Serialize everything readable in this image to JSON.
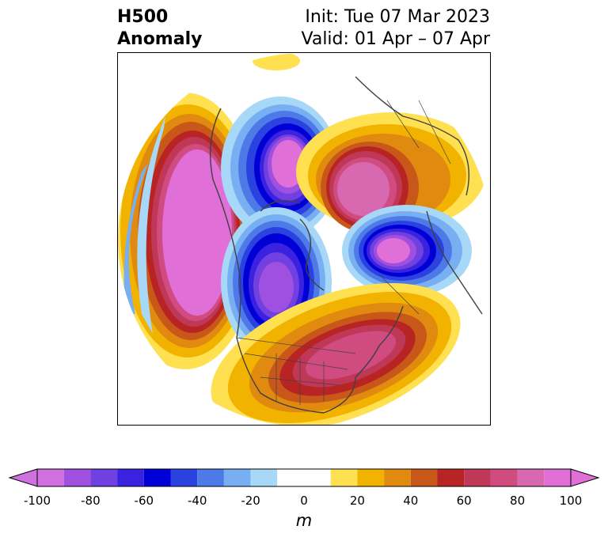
{
  "header": {
    "variable": "H500",
    "product": "Anomaly",
    "init": "Init: Tue 07 Mar 2023",
    "valid": "Valid: 01 Apr – 07 Apr"
  },
  "colorbar": {
    "unit": "m",
    "tick_labels": [
      "-100",
      "-80",
      "-60",
      "-40",
      "-20",
      "0",
      "20",
      "40",
      "60",
      "80",
      "100"
    ],
    "tick_values": [
      -100,
      -80,
      -60,
      -40,
      -20,
      0,
      20,
      40,
      60,
      80,
      100
    ],
    "range": [
      -100,
      100
    ],
    "extend": "both",
    "bins": [
      {
        "from": -100,
        "to": -90,
        "color": "#d070e0"
      },
      {
        "from": -90,
        "to": -80,
        "color": "#a050e0"
      },
      {
        "from": -80,
        "to": -70,
        "color": "#7040e0"
      },
      {
        "from": -70,
        "to": -60,
        "color": "#3a22e0"
      },
      {
        "from": -60,
        "to": -50,
        "color": "#0000d6"
      },
      {
        "from": -50,
        "to": -40,
        "color": "#2a42e0"
      },
      {
        "from": -40,
        "to": -30,
        "color": "#4e7ae8"
      },
      {
        "from": -30,
        "to": -20,
        "color": "#78aef2"
      },
      {
        "from": -20,
        "to": -10,
        "color": "#a8d8f8"
      },
      {
        "from": -10,
        "to": 10,
        "color": "#ffffff"
      },
      {
        "from": 10,
        "to": 20,
        "color": "#ffe050"
      },
      {
        "from": 20,
        "to": 30,
        "color": "#f2b200"
      },
      {
        "from": 30,
        "to": 40,
        "color": "#e08a10"
      },
      {
        "from": 40,
        "to": 50,
        "color": "#c8581a"
      },
      {
        "from": 50,
        "to": 60,
        "color": "#b82424"
      },
      {
        "from": 60,
        "to": 70,
        "color": "#c03858"
      },
      {
        "from": 70,
        "to": 80,
        "color": "#d04c80"
      },
      {
        "from": 80,
        "to": 90,
        "color": "#d868b0"
      },
      {
        "from": 90,
        "to": 100,
        "color": "#e070d8"
      }
    ],
    "under_color": "#d070e0",
    "over_color": "#e070d8"
  },
  "map": {
    "projection": "north-polar-stereographic",
    "features": [
      "coastlines",
      "country-borders",
      "state-borders"
    ],
    "anomaly_centers": [
      {
        "name": "northeast-pacific-ridge",
        "sign": "positive",
        "peak": 100
      },
      {
        "name": "canadian-archipelago-trough",
        "sign": "negative",
        "peak": -100
      },
      {
        "name": "arctic-trough",
        "sign": "negative",
        "peak": -100
      },
      {
        "name": "north-central-siberia-ridge",
        "sign": "positive",
        "peak": 100
      },
      {
        "name": "scandinavia-trough",
        "sign": "negative",
        "peak": -100
      },
      {
        "name": "eastern-us-atlantic-ridge",
        "sign": "positive",
        "peak": 80
      },
      {
        "name": "aleutian-trough",
        "sign": "negative",
        "peak": -40
      }
    ]
  }
}
